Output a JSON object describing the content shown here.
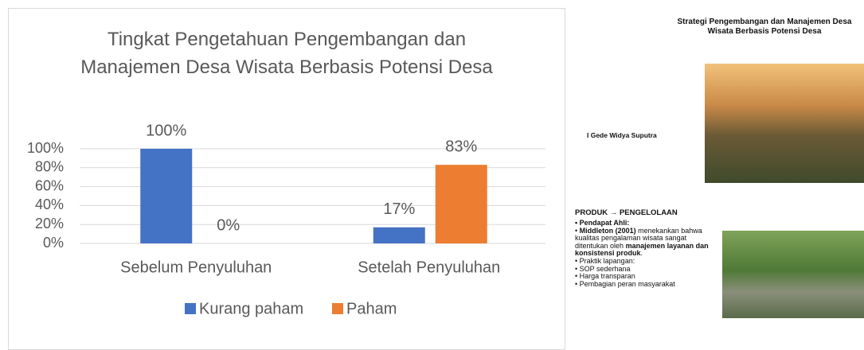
{
  "chart_data": {
    "type": "bar",
    "title": "Tingkat Pengetahuan Pengembangan dan Manajemen Desa Wisata Berbasis Potensi Desa",
    "categories": [
      "Sebelum Penyuluhan",
      "Setelah Penyuluhan"
    ],
    "series": [
      {
        "name": "Kurang paham",
        "color": "#4472c4",
        "values": [
          100,
          17
        ],
        "value_labels": [
          "100%",
          "17%"
        ]
      },
      {
        "name": "Paham",
        "color": "#ed7d31",
        "values": [
          0,
          83
        ],
        "value_labels": [
          "0%",
          "83%"
        ]
      }
    ],
    "ylim": [
      0,
      100
    ],
    "yticks": [
      {
        "value": 0,
        "label": "0%"
      },
      {
        "value": 20,
        "label": "20%"
      },
      {
        "value": 40,
        "label": "40%"
      },
      {
        "value": 60,
        "label": "60%"
      },
      {
        "value": 80,
        "label": "80%"
      },
      {
        "value": 100,
        "label": "100%"
      }
    ],
    "grid": true,
    "legend": "bottom"
  },
  "slide_1": {
    "title": "Strategi Pengembangan dan Manajemen Desa Wisata Berbasis Potensi Desa",
    "author": "I Gede Widya Suputra"
  },
  "slide_2": {
    "heading": "PRODUK → PENGELOLAAN",
    "bullets": [
      "Pendapat Ahli:",
      [
        "Middleton (2001)",
        " menekankan bahwa kualitas pengalaman wisata sangat ditentukan oleh ",
        "manajemen layanan dan konsistensi produk",
        "."
      ],
      "Praktik lapangan:",
      "SOP sederhana",
      "Harga transparan",
      "Pembagian peran masyarakat"
    ]
  }
}
